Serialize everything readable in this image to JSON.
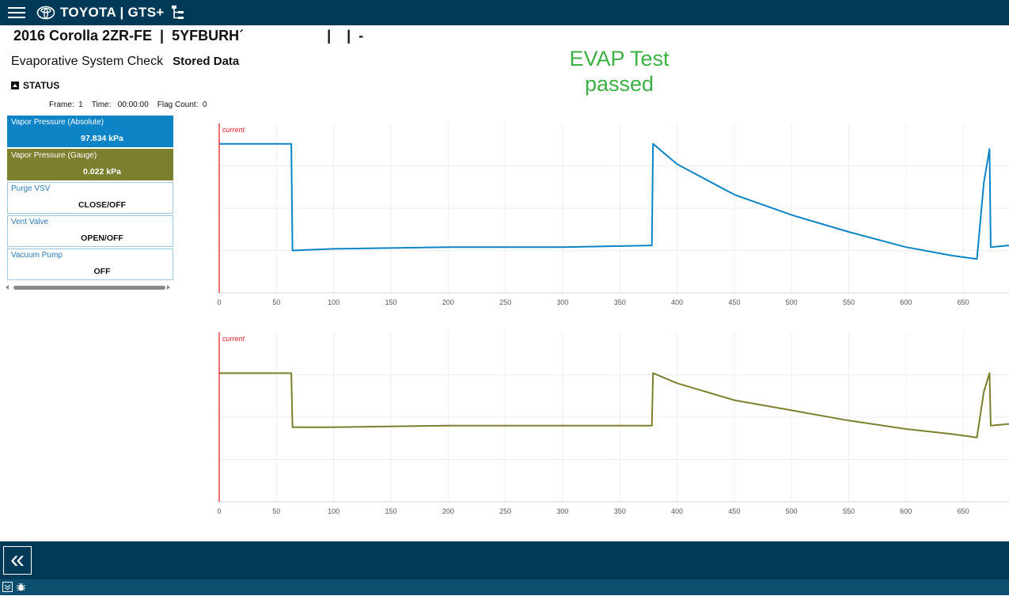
{
  "header": {
    "brand": "TOYOTA | GTS+"
  },
  "vehicle": {
    "line": "2016 Corolla 2ZR-FE  |  5YFBURH´                     |    |  -"
  },
  "page": {
    "title": "Evaporative System Check",
    "mode": "Stored Data"
  },
  "annotation": {
    "line1": "EVAP Test",
    "line2": "passed"
  },
  "status": {
    "label": "STATUS",
    "frame_label": "Frame:",
    "frame_value": "1",
    "time_label": "Time:",
    "time_value": "00:00:00",
    "flag_label": "Flag Count:",
    "flag_value": "0"
  },
  "params": [
    {
      "name": "Vapor Pressure (Absolute)",
      "value": "97.834 kPa"
    },
    {
      "name": "Vapor Pressure (Gauge)",
      "value": "0.022 kPa"
    },
    {
      "name": "Purge VSV",
      "value": "CLOSE/OFF"
    },
    {
      "name": "Vent Valve",
      "value": "OPEN/OFF"
    },
    {
      "name": "Vacuum Pump",
      "value": "OFF"
    }
  ],
  "colors": {
    "topbar": "#003a57",
    "abs_series": "#0c84c6",
    "gauge_series": "#7b7f2e",
    "cursor": "#e8202a",
    "annotation": "#3cb043"
  },
  "chart_data": [
    {
      "type": "line",
      "cursor_label": "current",
      "xlim": [
        0,
        690
      ],
      "ylim": [
        0,
        1
      ],
      "x_ticks": [
        0,
        50,
        100,
        150,
        200,
        250,
        300,
        350,
        400,
        450,
        500,
        550,
        600,
        650
      ],
      "grid": true,
      "series": [
        {
          "color": "#0c84c6",
          "x": [
            0,
            63,
            64,
            100,
            200,
            300,
            378,
            379,
            400,
            450,
            500,
            550,
            600,
            640,
            662,
            668,
            673,
            674,
            690
          ],
          "y": [
            0.88,
            0.88,
            0.25,
            0.26,
            0.27,
            0.27,
            0.28,
            0.88,
            0.76,
            0.58,
            0.46,
            0.36,
            0.27,
            0.22,
            0.2,
            0.65,
            0.85,
            0.27,
            0.28
          ]
        }
      ]
    },
    {
      "type": "line",
      "cursor_label": "current",
      "xlim": [
        0,
        690
      ],
      "ylim": [
        0,
        1
      ],
      "x_ticks": [
        0,
        50,
        100,
        150,
        200,
        250,
        300,
        350,
        400,
        450,
        500,
        550,
        600,
        650
      ],
      "grid": true,
      "series": [
        {
          "color": "#7b7f2e",
          "x": [
            0,
            63,
            64,
            100,
            200,
            300,
            378,
            379,
            400,
            450,
            500,
            550,
            600,
            640,
            662,
            668,
            673,
            674,
            690
          ],
          "y": [
            0.76,
            0.76,
            0.44,
            0.44,
            0.45,
            0.45,
            0.45,
            0.76,
            0.7,
            0.6,
            0.54,
            0.48,
            0.43,
            0.4,
            0.38,
            0.65,
            0.76,
            0.45,
            0.46
          ]
        }
      ]
    }
  ]
}
